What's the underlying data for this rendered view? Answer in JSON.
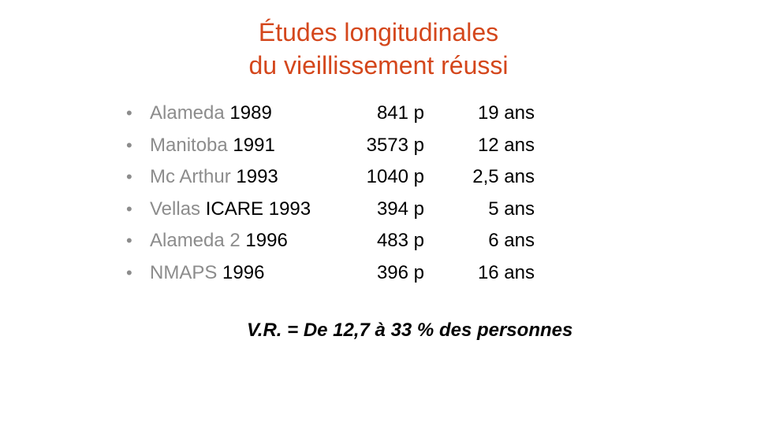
{
  "title": {
    "line1": "Études longitudinales",
    "line2": "du vieillissement réussi"
  },
  "bullet_glyph": "•",
  "studies": [
    {
      "name": "Alameda",
      "year": "1989",
      "count": "841 p",
      "duration": "19 ans"
    },
    {
      "name": "Manitoba",
      "year": "1991",
      "count": "3573 p",
      "duration": "12 ans"
    },
    {
      "name": "Mc Arthur",
      "year": "1993",
      "count": "1040 p",
      "duration": "2,5 ans"
    },
    {
      "name": "Vellas",
      "year": "ICARE 1993",
      "count": "394 p",
      "duration": "5 ans"
    },
    {
      "name": "Alameda 2",
      "year": "1996",
      "count": "483 p",
      "duration": "6 ans"
    },
    {
      "name": "NMAPS",
      "year": "1996",
      "count": "396 p",
      "duration": "16 ans"
    }
  ],
  "summary": "V.R. = De 12,7 à 33 % des personnes",
  "colors": {
    "title": "#d4471c",
    "study_name": "#8c8c8c",
    "text": "#000000"
  }
}
